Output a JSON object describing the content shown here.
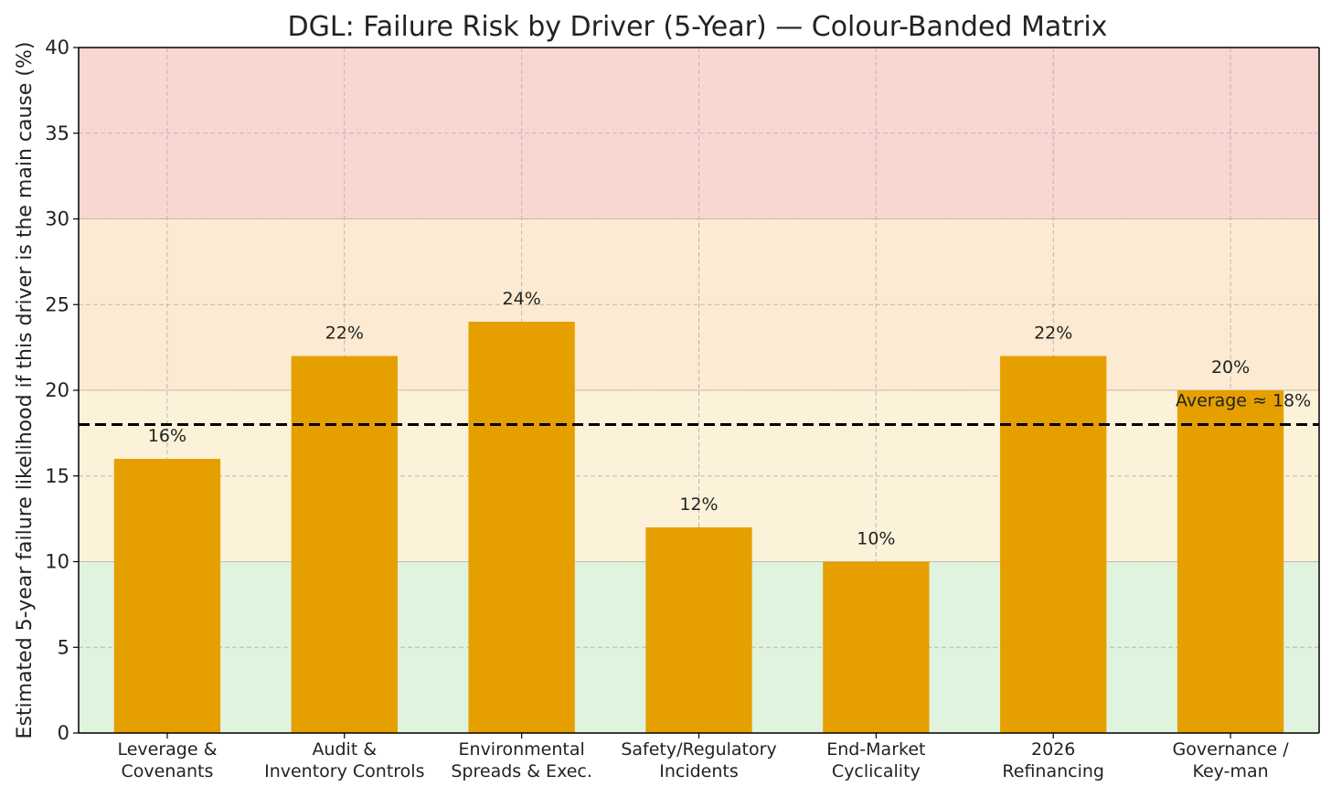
{
  "chart_data": {
    "type": "bar",
    "title": "DGL: Failure Risk by Driver (5-Year) — Colour-Banded Matrix",
    "xlabel": "",
    "ylabel": "Estimated 5-year failure likelihood if this driver is the main cause (%)",
    "ylim": [
      0,
      40
    ],
    "yticks": [
      0,
      5,
      10,
      15,
      20,
      25,
      30,
      35,
      40
    ],
    "grid": true,
    "categories": [
      [
        "Leverage &",
        "Covenants"
      ],
      [
        "Audit &",
        "Inventory Controls"
      ],
      [
        "Environmental",
        "Spreads & Exec."
      ],
      [
        "Safety/Regulatory",
        "Incidents"
      ],
      [
        "End-Market",
        "Cyclicality"
      ],
      [
        "2026",
        "Refinancing"
      ],
      [
        "Governance /",
        "Key-man"
      ]
    ],
    "values": [
      16,
      22,
      24,
      12,
      10,
      22,
      20
    ],
    "data_labels": [
      "16%",
      "22%",
      "24%",
      "12%",
      "10%",
      "22%",
      "20%"
    ],
    "bar_color": "#e5a000",
    "bands": [
      {
        "from": 0,
        "to": 10,
        "color": "#dff3df"
      },
      {
        "from": 10,
        "to": 20,
        "color": "#fcf2d9"
      },
      {
        "from": 20,
        "to": 30,
        "color": "#fcebd2"
      },
      {
        "from": 30,
        "to": 40,
        "color": "#f9d6d2"
      }
    ],
    "reference_line": {
      "value": 18,
      "label": "Average ≈ 18%",
      "color": "#000000"
    }
  }
}
